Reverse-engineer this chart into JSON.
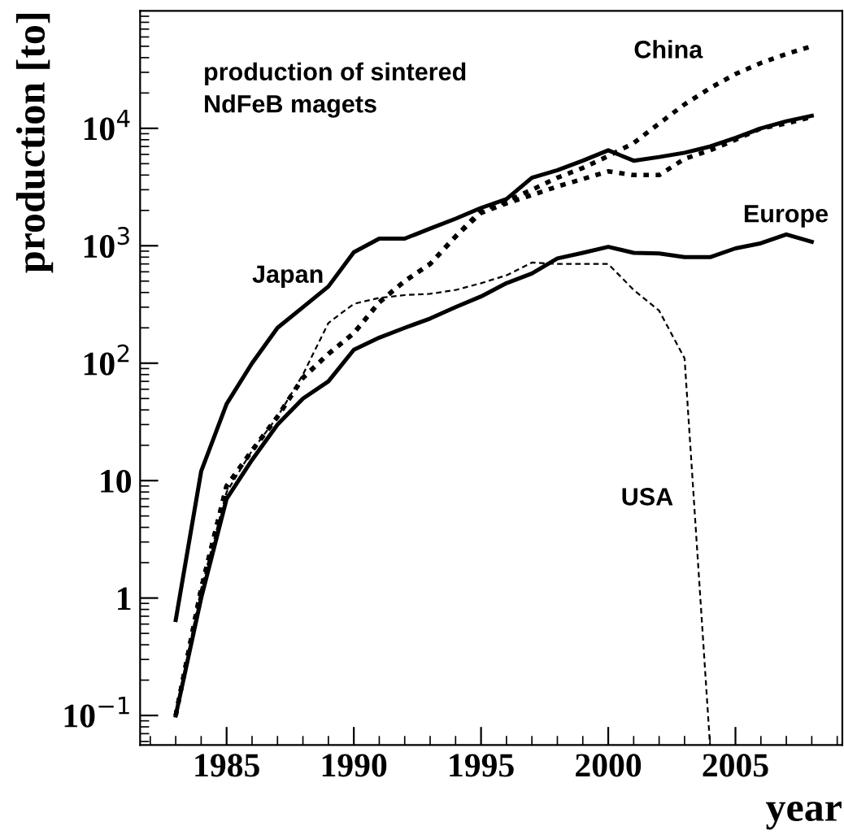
{
  "chart_data": {
    "type": "line",
    "xlabel": "year",
    "ylabel": "production [to]",
    "log": "y",
    "grid": false,
    "legend": false,
    "marker": "none",
    "annotations": [
      "production of sintered\nNdFeB magets"
    ],
    "x": [
      1983,
      1984,
      1985,
      1986,
      1987,
      1988,
      1989,
      1990,
      1991,
      1992,
      1993,
      1994,
      1995,
      1996,
      1997,
      1998,
      1999,
      2000,
      2001,
      2002,
      2003,
      2004,
      2005,
      2006,
      2007,
      2008
    ],
    "xlim": [
      1981.6,
      2009.2
    ],
    "xticks": [
      1985,
      1990,
      1995,
      2000,
      2005
    ],
    "ylim": [
      0.056,
      100000
    ],
    "yticks": [
      {
        "value": 0.1,
        "label": "10$^{−1}$"
      },
      1,
      10,
      {
        "value": 100,
        "label": "10$^{2}$"
      },
      {
        "value": 1000,
        "label": "10$^{3}$"
      },
      {
        "value": 10000,
        "label": "10$^{4}$"
      }
    ],
    "series": [
      {
        "name": "Japan",
        "color": "#000000",
        "line_style": "solid",
        "values": [
          0.65,
          12,
          45,
          100,
          200,
          300,
          450,
          880,
          1150,
          1150,
          1400,
          1700,
          2100,
          2500,
          3800,
          4400,
          5300,
          6500,
          5300,
          5700,
          6200,
          7000,
          8300,
          10000,
          11500,
          12800
        ]
      },
      {
        "name": "Europe",
        "color": "#000000",
        "line_style": "solid",
        "values": [
          0.1,
          1,
          7,
          15,
          30,
          50,
          70,
          130,
          165,
          200,
          240,
          300,
          370,
          480,
          580,
          780,
          870,
          980,
          870,
          860,
          800,
          800,
          950,
          1050,
          1250,
          1080
        ]
      },
      {
        "name": "China",
        "color": "#000000",
        "line_style": "dotted",
        "values": [
          0.1,
          1.2,
          9,
          18,
          35,
          75,
          120,
          180,
          330,
          500,
          700,
          1200,
          2000,
          2400,
          3000,
          3800,
          4600,
          5800,
          7500,
          11000,
          16000,
          22000,
          29000,
          36000,
          43000,
          50000
        ]
      },
      {
        "color": "#000000",
        "line_style": "dotted",
        "values": [
          0.1,
          1.2,
          9,
          18,
          35,
          75,
          120,
          180,
          330,
          500,
          700,
          1200,
          1900,
          2300,
          2700,
          3200,
          3700,
          4300,
          4000,
          4000,
          5500,
          6500,
          8000,
          10000,
          11000,
          12500
        ]
      },
      {
        "name": "USA",
        "color": "#000000",
        "line_style": "dashed",
        "x": [
          1983,
          1984,
          1985,
          1986,
          1987,
          1988,
          1989,
          1990,
          1991,
          1992,
          1993,
          1994,
          1995,
          1996,
          1997,
          1998,
          1999,
          2000,
          2001,
          2002,
          2003,
          2004
        ],
        "values": [
          0.1,
          1.2,
          8,
          18,
          35,
          80,
          220,
          320,
          360,
          380,
          390,
          420,
          480,
          560,
          720,
          700,
          700,
          700,
          420,
          280,
          110,
          0.056
        ]
      }
    ]
  }
}
